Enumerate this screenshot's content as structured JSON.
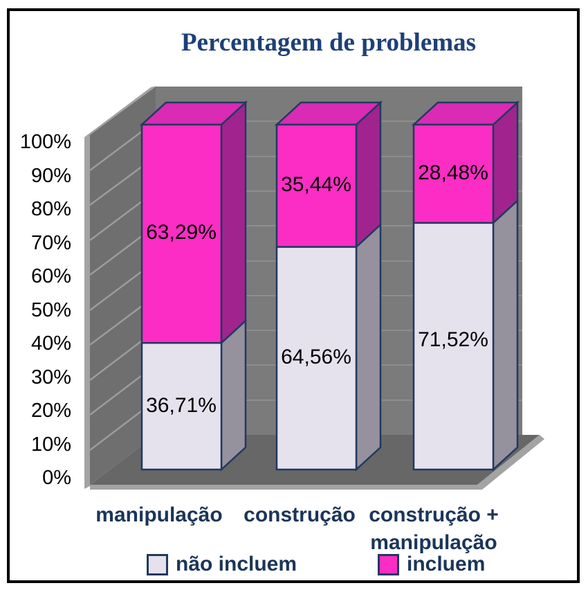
{
  "chart_data": {
    "type": "bar",
    "variant": "3d-stacked-percent",
    "title": "Percentagem de problemas",
    "categories": [
      "manipulação",
      "construção",
      "construção + manipulação"
    ],
    "series": [
      {
        "name": "não incluem",
        "values": [
          36.71,
          64.56,
          71.52
        ],
        "data_labels": [
          "36,71%",
          "64,56%",
          "71,52%"
        ],
        "color": "#E5E1ED",
        "side_color": "#95919D"
      },
      {
        "name": "incluem",
        "values": [
          63.29,
          35.44,
          28.48
        ],
        "data_labels": [
          "63,29%",
          "35,44%",
          "28,48%"
        ],
        "color": "#FB2DC4",
        "side_color": "#A1248E",
        "top_color": "#D92BB4"
      }
    ],
    "y_axis": {
      "min": 0,
      "max": 100,
      "ticks": [
        "0%",
        "10%",
        "20%",
        "30%",
        "40%",
        "50%",
        "60%",
        "70%",
        "80%",
        "90%",
        "100%"
      ]
    },
    "legend": {
      "position": "bottom"
    },
    "grid": true
  },
  "colors": {
    "title_text": "#1F4077",
    "label_text": "#1B3559",
    "tick_text": "#000000",
    "bar_border": "#21395F",
    "back_wall": "#7B7B7B",
    "side_wall": "#6F6F6F",
    "floor": "#676767",
    "gridline": "#8E8E8E",
    "wall_gridline": "#9C9C9C",
    "wall_edge": "#A3A3A3",
    "frame_border": "#000000"
  }
}
